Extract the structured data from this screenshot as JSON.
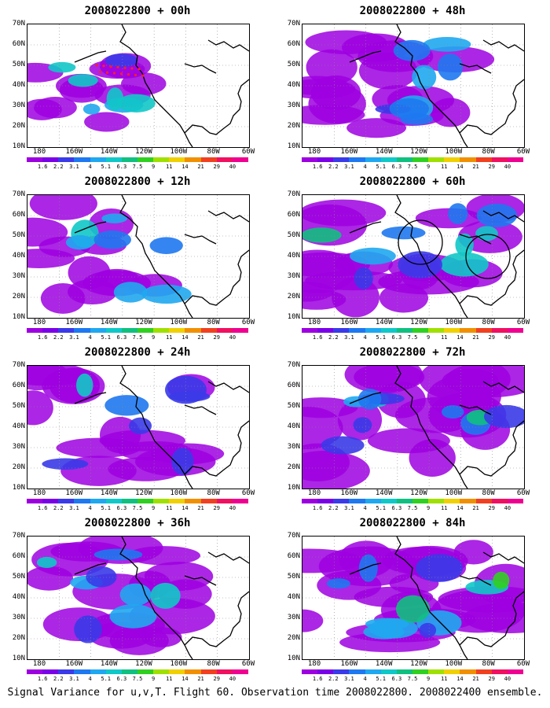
{
  "colorbar": {
    "labels": [
      "1.6",
      "2.2",
      "3.1",
      "4",
      "5.1",
      "6.3",
      "7.5",
      "9",
      "11",
      "14",
      "21",
      "29",
      "40"
    ],
    "colors": [
      "#9d00e0",
      "#7a00e8",
      "#3a3ae8",
      "#1e78f0",
      "#1fa8f0",
      "#10c8c8",
      "#10c080",
      "#30d020",
      "#a0e000",
      "#f0d000",
      "#f09000",
      "#f04020",
      "#f01060",
      "#f00090"
    ]
  },
  "lat_labels": [
    "70N",
    "60N",
    "50N",
    "40N",
    "30N",
    "20N",
    "10N"
  ],
  "lon_labels": [
    "180",
    "160W",
    "140W",
    "120W",
    "100W",
    "80W",
    "60W"
  ],
  "panels": [
    {
      "title": "2008022800 + 00h",
      "coverage": 0.25,
      "intensity": 0.35,
      "track": true,
      "circles": false
    },
    {
      "title": "2008022800 + 48h",
      "coverage": 0.7,
      "intensity": 0.45,
      "track": false,
      "circles": false
    },
    {
      "title": "2008022800 + 12h",
      "coverage": 0.45,
      "intensity": 0.35,
      "track": false,
      "circles": false
    },
    {
      "title": "2008022800 + 60h",
      "coverage": 0.8,
      "intensity": 0.55,
      "track": false,
      "circles": true
    },
    {
      "title": "2008022800 + 24h",
      "coverage": 0.6,
      "intensity": 0.35,
      "track": false,
      "circles": false
    },
    {
      "title": "2008022800 + 72h",
      "coverage": 0.85,
      "intensity": 0.6,
      "track": false,
      "circles": false
    },
    {
      "title": "2008022800 + 36h",
      "coverage": 0.65,
      "intensity": 0.4,
      "track": false,
      "circles": false
    },
    {
      "title": "2008022800 + 84h",
      "coverage": 0.9,
      "intensity": 0.7,
      "track": false,
      "circles": false
    }
  ],
  "caption": "Signal Variance for u,v,T. Flight 60. Observation time 2008022800. 2008022400 ensemble."
}
